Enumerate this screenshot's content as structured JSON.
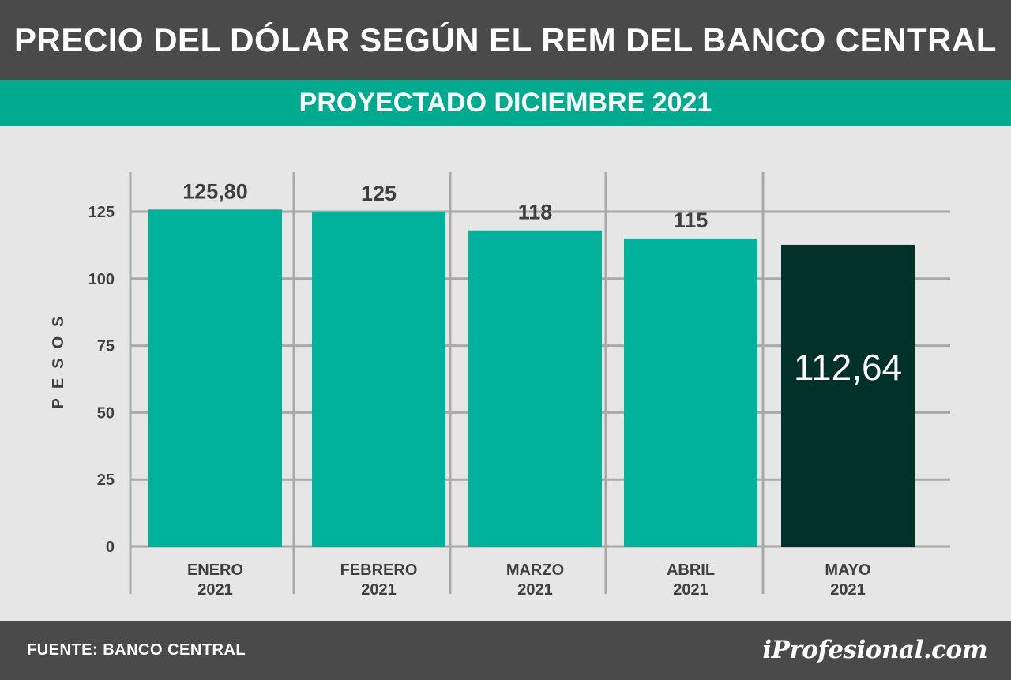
{
  "header": {
    "title": "PRECIO DEL DÓLAR SEGÚN EL REM DEL BANCO CENTRAL",
    "subtitle": "PROYECTADO DICIEMBRE 2021"
  },
  "footer": {
    "source": "FUENTE: BANCO CENTRAL",
    "logo": "iProfesional.com"
  },
  "colors": {
    "bar": "#00b29c",
    "highlight_bar": "#02312a",
    "header_bg": "#4a4a4a",
    "subtitle_bg": "#00aa8f",
    "plot_bg": "#e6e6e6",
    "grid": "#a8a8a8"
  },
  "chart_data": {
    "type": "bar",
    "categories": [
      [
        "ENERO",
        "2021"
      ],
      [
        "FEBRERO",
        "2021"
      ],
      [
        "MARZO",
        "2021"
      ],
      [
        "ABRIL",
        "2021"
      ],
      [
        "MAYO",
        "2021"
      ]
    ],
    "values": [
      125.8,
      125,
      118,
      115,
      112.64
    ],
    "value_labels": [
      "125,80",
      "125",
      "118",
      "115",
      "112,64"
    ],
    "highlight_index": 4,
    "title": "",
    "xlabel": "",
    "ylabel": "PESOS",
    "ylim": [
      0,
      125
    ],
    "yticks": [
      0,
      25,
      50,
      75,
      100,
      125
    ],
    "grid": true,
    "legend": "none"
  }
}
